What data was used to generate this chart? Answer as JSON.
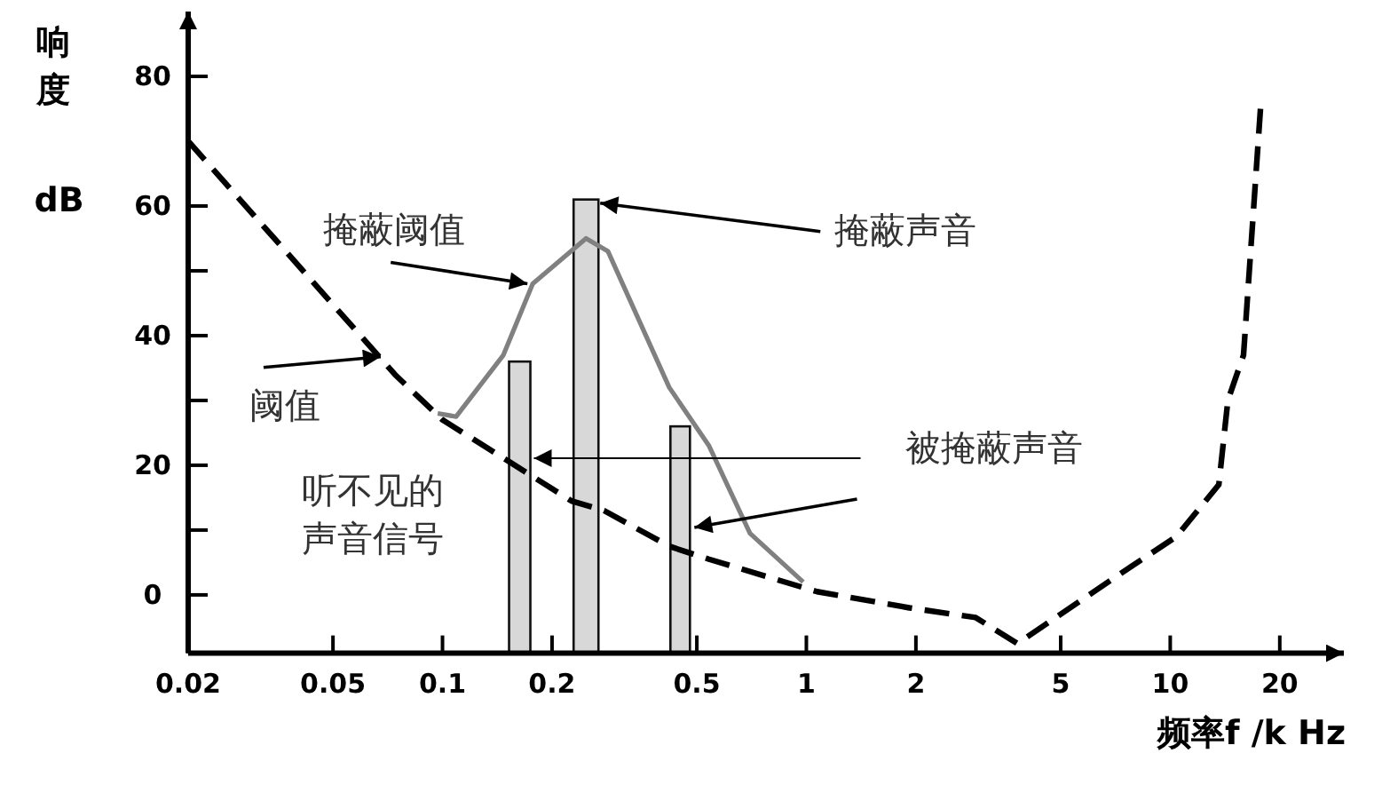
{
  "chart_data": {
    "type": "line",
    "xlabel": "频率f /k Hz",
    "ylabel": "响度 dB",
    "log": "x",
    "xlim": [
      0.02,
      30
    ],
    "xticks": [
      0.02,
      0.05,
      0.1,
      0.2,
      0.5,
      1,
      2,
      5,
      10,
      20
    ],
    "ylim": [
      -9,
      90
    ],
    "yticks": [
      0,
      {
        "value": 10,
        "label": null
      },
      20,
      {
        "value": 30,
        "label": null
      },
      40,
      {
        "value": 50,
        "label": null
      },
      60,
      80
    ],
    "grid": false,
    "series": [
      {
        "line_style": "dashed",
        "color": "#000000",
        "x": [
          0.02,
          0.074,
          0.1,
          0.153,
          0.226,
          0.278,
          0.42,
          0.54,
          1.07,
          1.92,
          2.92,
          3.8,
          4.7,
          7.4,
          10.4,
          13.6,
          14.4,
          15.9,
          17.7
        ],
        "values": [
          70,
          34,
          27,
          20.5,
          14.5,
          13,
          7.5,
          5.5,
          0.5,
          -2,
          -3.5,
          -7.5,
          -4,
          3.5,
          9,
          17,
          30,
          37,
          75
        ]
      },
      {
        "line_style": "solid",
        "color": "#808080",
        "x": [
          0.097,
          0.109,
          0.147,
          0.177,
          0.248,
          0.285,
          0.42,
          0.54,
          0.7,
          0.98
        ],
        "values": [
          28,
          27.5,
          37,
          48,
          55,
          53,
          32,
          23,
          9.5,
          2
        ]
      },
      {
        "type": "bar",
        "color": "#d8d8d8",
        "x": [
          0.163,
          0.248,
          0.45
        ],
        "base": [
          -9,
          -9,
          -9
        ],
        "values": [
          45,
          70,
          35
        ]
      }
    ],
    "annotations": [
      {
        "text": "掩蔽阈值",
        "x": 0.177,
        "y": 48
      },
      {
        "text": "掩蔽声音",
        "x": 0.248,
        "y": 61
      },
      {
        "text": "阈值",
        "x": 0.074,
        "y": 34
      },
      {
        "text": "被掩蔽声音",
        "x": 0.163,
        "y": 20
      },
      "听不见的",
      "声音信号"
    ]
  }
}
